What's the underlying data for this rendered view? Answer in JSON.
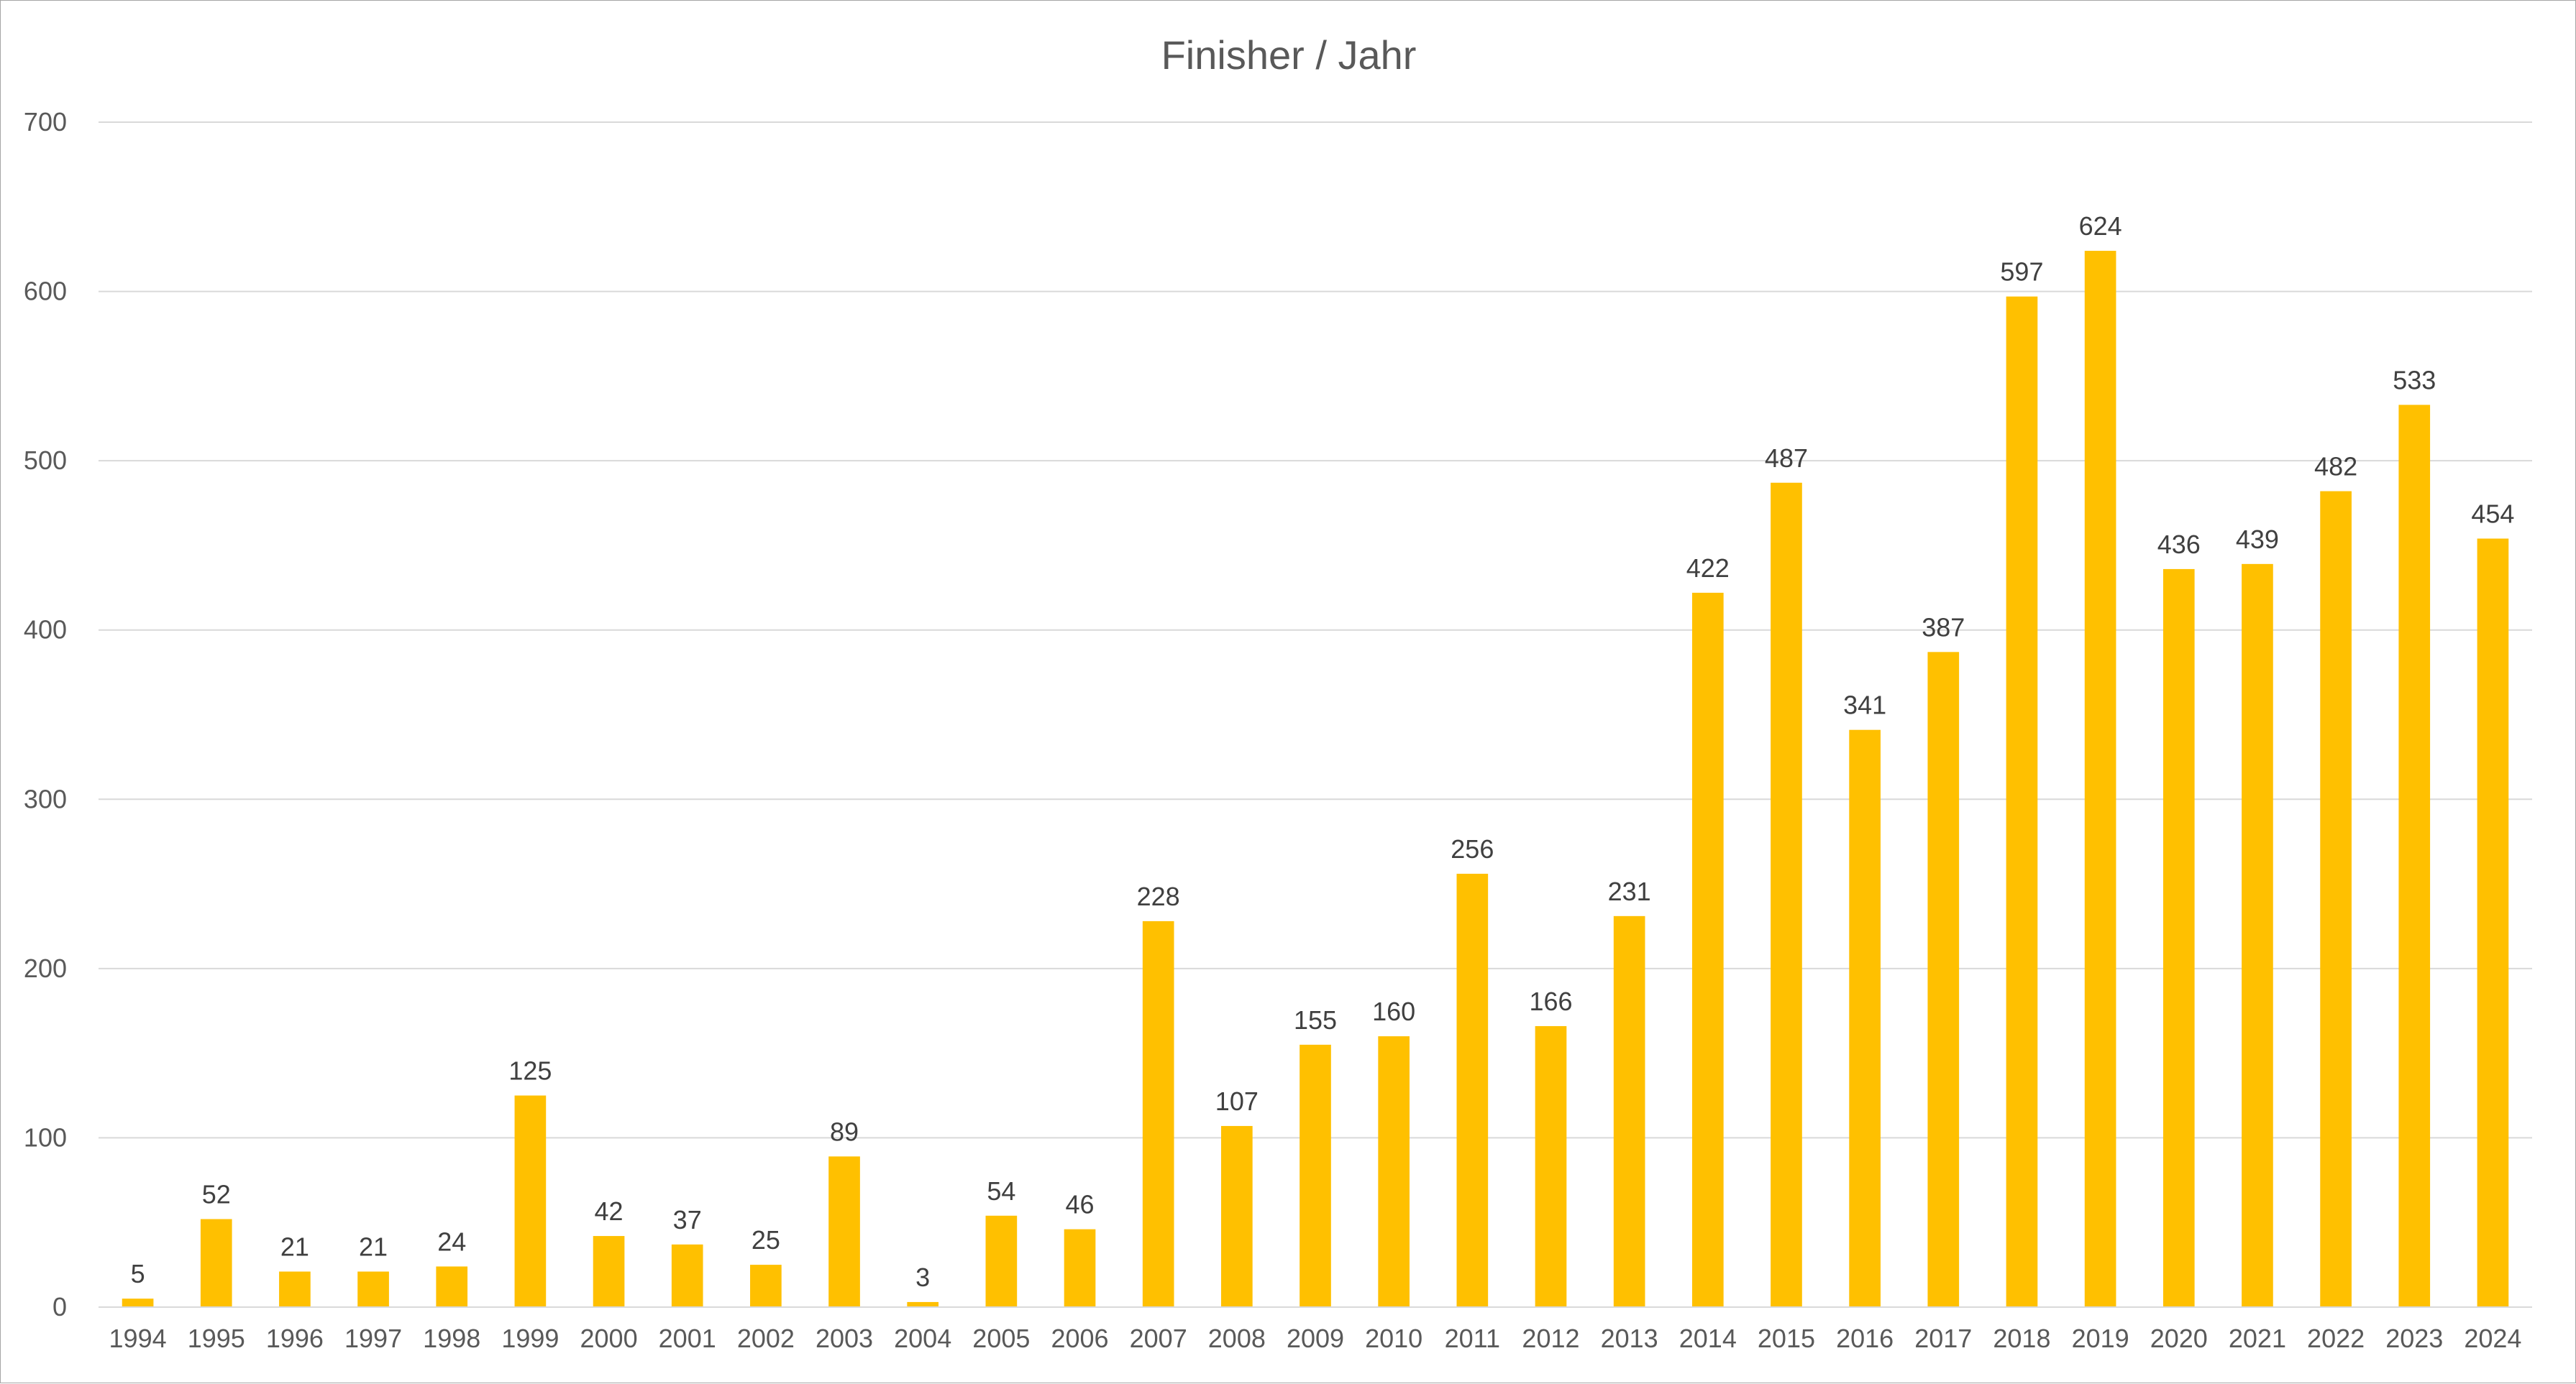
{
  "chart_data": {
    "type": "bar",
    "title": "Finisher / Jahr",
    "xlabel": "",
    "ylabel": "",
    "categories": [
      "1994",
      "1995",
      "1996",
      "1997",
      "1998",
      "1999",
      "2000",
      "2001",
      "2002",
      "2003",
      "2004",
      "2005",
      "2006",
      "2007",
      "2008",
      "2009",
      "2010",
      "2011",
      "2012",
      "2013",
      "2014",
      "2015",
      "2016",
      "2017",
      "2018",
      "2019",
      "2020",
      "2021",
      "2022",
      "2023",
      "2024"
    ],
    "values": [
      5,
      52,
      21,
      21,
      24,
      125,
      42,
      37,
      25,
      89,
      3,
      54,
      46,
      228,
      107,
      155,
      160,
      256,
      166,
      231,
      422,
      487,
      341,
      387,
      597,
      624,
      436,
      439,
      482,
      533,
      454
    ],
    "ylim": [
      0,
      700
    ],
    "yticks": [
      0,
      100,
      200,
      300,
      400,
      500,
      600,
      700
    ],
    "data_labels": true,
    "grid": true,
    "legend": "none",
    "bar_color": "#FFC000"
  }
}
